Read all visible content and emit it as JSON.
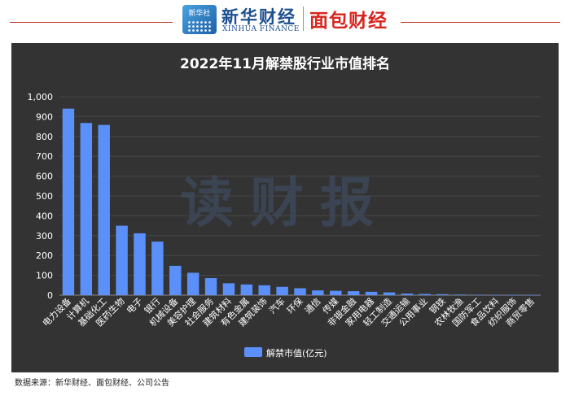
{
  "header": {
    "xinhua_logo_text": "新华社",
    "xinhua_name": "新华财经",
    "xinhua_en": "XINHUA FINANCE",
    "mianbao_name": "面包财经"
  },
  "watermark": "读财报",
  "source": "数据来源：新华财经、面包财经、公司公告",
  "colors": {
    "bar": "#5b8ff9",
    "background": "#333333",
    "grid": "#474747",
    "text": "#ffffff"
  },
  "chart_data": {
    "type": "bar",
    "title": "2022年11月解禁股行业市值排名",
    "xlabel": "",
    "ylabel": "",
    "ylim": [
      0,
      1000
    ],
    "yticks": [
      "0",
      "100",
      "200",
      "300",
      "400",
      "500",
      "600",
      "700",
      "800",
      "900",
      "1,000"
    ],
    "grid": true,
    "legend_position": "bottom",
    "categories": [
      "电力设备",
      "计算机",
      "基础化工",
      "医药生物",
      "电子",
      "银行",
      "机械设备",
      "美容护理",
      "社会服务",
      "建筑材料",
      "有色金属",
      "建筑装饰",
      "汽车",
      "环保",
      "通信",
      "传媒",
      "非银金融",
      "家用电器",
      "轻工制造",
      "交通运输",
      "公用事业",
      "钢铁",
      "农林牧渔",
      "国防军工",
      "食品饮料",
      "纺织服饰",
      "商贸零售"
    ],
    "series": [
      {
        "name": "解禁市值(亿元)",
        "values": [
          940,
          868,
          858,
          350,
          312,
          270,
          148,
          113,
          86,
          60,
          54,
          50,
          42,
          35,
          24,
          22,
          20,
          17,
          14,
          8,
          6,
          5,
          3,
          2,
          1,
          1,
          1
        ]
      }
    ]
  }
}
